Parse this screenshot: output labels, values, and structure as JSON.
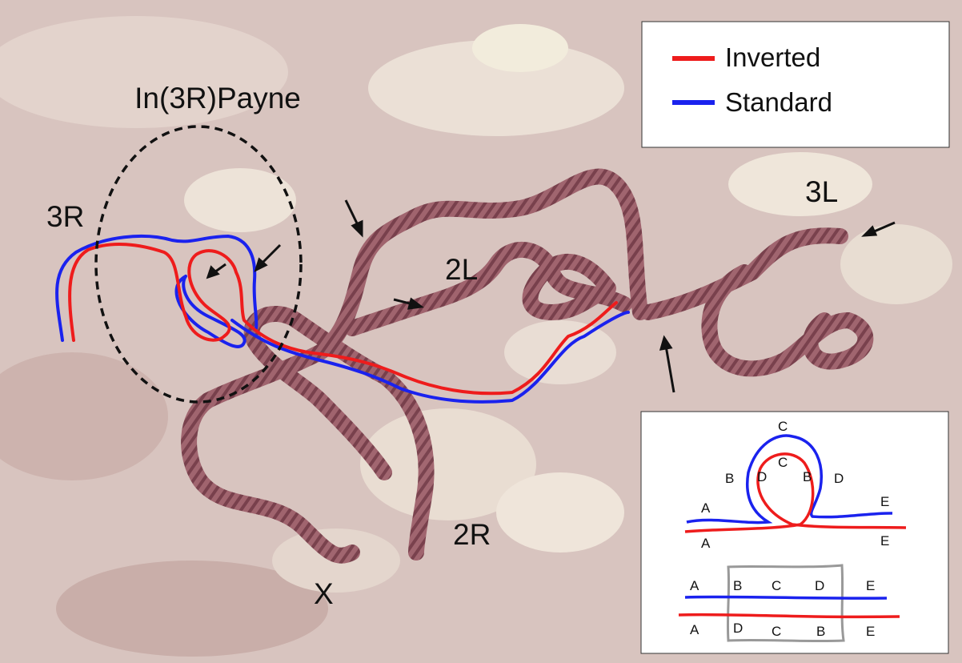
{
  "figure": {
    "inversion_label": "In(3R)Payne",
    "arm_labels": {
      "r3": "3R",
      "l3": "3L",
      "l2": "2L",
      "r2": "2R",
      "x": "X"
    }
  },
  "legend": {
    "items": [
      {
        "label": "Inverted",
        "color": "#ee1c1c"
      },
      {
        "label": "Standard",
        "color": "#1a22ee"
      }
    ]
  },
  "inset": {
    "loop_blue_labels": {
      "a": "A",
      "b": "B",
      "c": "C",
      "d": "D",
      "e": "E"
    },
    "loop_red_labels": {
      "a": "A",
      "d": "D",
      "c": "C",
      "b": "B",
      "e": "E"
    },
    "linear_blue": [
      "A",
      "B",
      "C",
      "D",
      "E"
    ],
    "linear_red": [
      "A",
      "D",
      "C",
      "B",
      "E"
    ]
  },
  "colors": {
    "background": "#d9c5c0",
    "chromosome": "#8a4a55",
    "inverted": "#ee1c1c",
    "standard": "#1a22ee",
    "ellipse": "#111111",
    "inset_box": "#999999"
  }
}
